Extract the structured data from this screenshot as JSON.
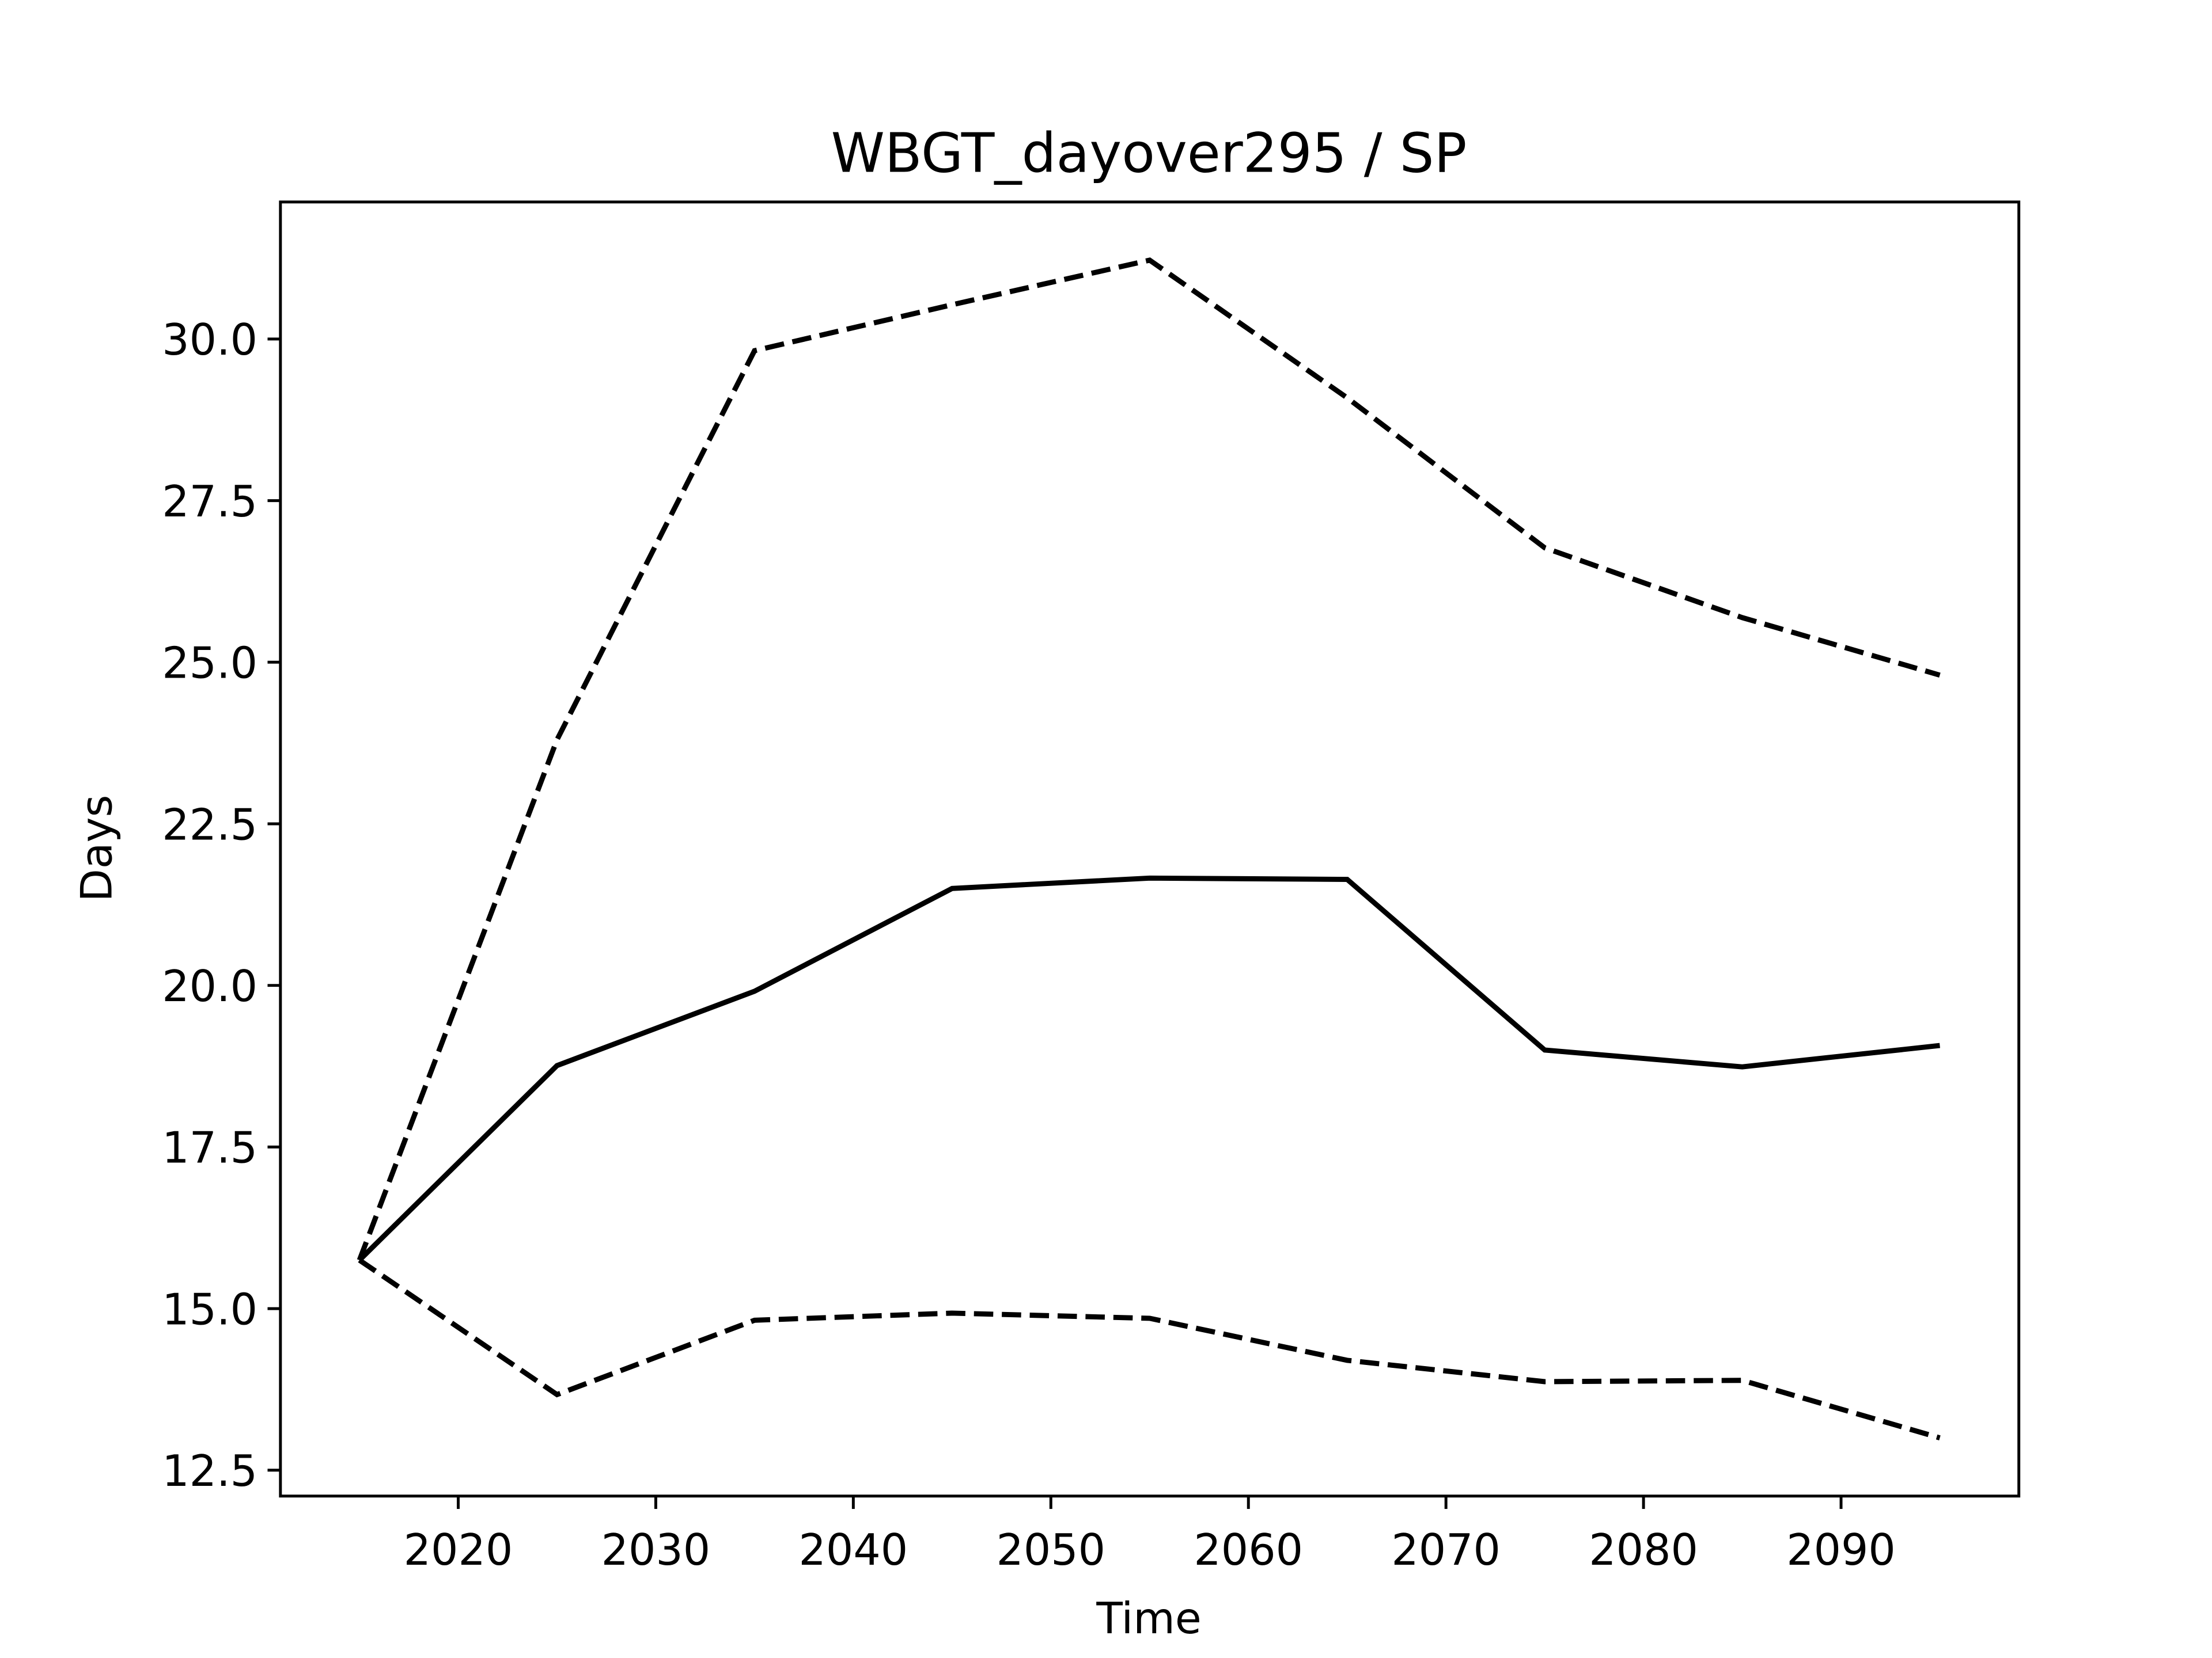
{
  "chart_data": {
    "type": "line",
    "title": "WBGT_dayover295 / SP",
    "x_label": "Time",
    "y_label": "Days",
    "x": [
      2015,
      2025,
      2035,
      2045,
      2055,
      2065,
      2075,
      2085,
      2095
    ],
    "series": [
      {
        "color": "#000000",
        "dash": "solid",
        "values": [
          15.75,
          18.76,
          19.91,
          21.5,
          21.66,
          21.64,
          19.0,
          18.74,
          19.07
        ]
      },
      {
        "color": "#000000",
        "dash": "dashed",
        "values": [
          15.75,
          23.8,
          29.82,
          30.53,
          31.22,
          29.09,
          26.77,
          25.69,
          24.8
        ]
      },
      {
        "color": "#000000",
        "dash": "dashed",
        "values": [
          15.75,
          13.67,
          14.82,
          14.93,
          14.85,
          14.2,
          13.87,
          13.89,
          13.0
        ]
      }
    ],
    "xlim": [
      2011,
      2099
    ],
    "xticks": [
      2020,
      2030,
      2040,
      2050,
      2060,
      2070,
      2080,
      2090
    ],
    "ylim": [
      12.1,
      32.12
    ],
    "yticks": [
      12.5,
      {
        "value": 15,
        "label": "15.0"
      },
      17.5,
      {
        "value": 20,
        "label": "20.0"
      },
      22.5,
      {
        "value": 25,
        "label": "25.0"
      },
      27.5,
      {
        "value": 30,
        "label": "30.0"
      }
    ],
    "grid": false
  }
}
